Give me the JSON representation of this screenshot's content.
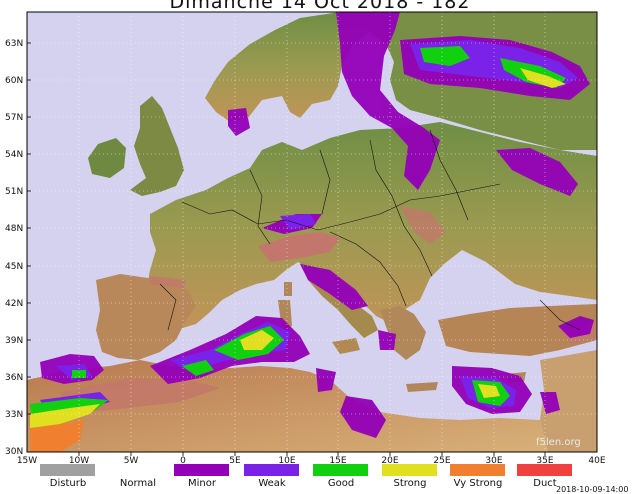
{
  "title": "Dimanche 14 Oct 2018 - 182",
  "map": {
    "lat_labels": [
      "63N",
      "60N",
      "57N",
      "54N",
      "51N",
      "48N",
      "45N",
      "42N",
      "39N",
      "36N",
      "33N",
      "30N"
    ],
    "lon_labels": [
      "15W",
      "10W",
      "5W",
      "0",
      "5E",
      "10E",
      "15E",
      "20E",
      "25E",
      "30E",
      "35E",
      "40E"
    ],
    "colors": {
      "sea": "#d5d2f0",
      "land_low": "#c59a5c",
      "land_green": "#5e8a3c",
      "mountain": "#c0706a",
      "minor": "#9400b8",
      "weak": "#7a22e8",
      "good": "#10d010",
      "strong": "#e0e020",
      "vy_strong": "#f08030",
      "duct": "#f04040",
      "disturb": "#a0a0a0",
      "coast": "#111111"
    }
  },
  "legend": [
    {
      "label": "Disturb",
      "color": "#a0a0a0"
    },
    {
      "label": "Normal",
      "color": ""
    },
    {
      "label": "Minor",
      "color": "#9400b8"
    },
    {
      "label": "Weak",
      "color": "#7a22e8"
    },
    {
      "label": "Good",
      "color": "#10d010"
    },
    {
      "label": "Strong",
      "color": "#e0e020"
    },
    {
      "label": "Vy Strong",
      "color": "#f08030"
    },
    {
      "label": "Duct",
      "color": "#f04040"
    }
  ],
  "watermark": "f5len.org",
  "timestamp": "2018-10-09-14:00"
}
